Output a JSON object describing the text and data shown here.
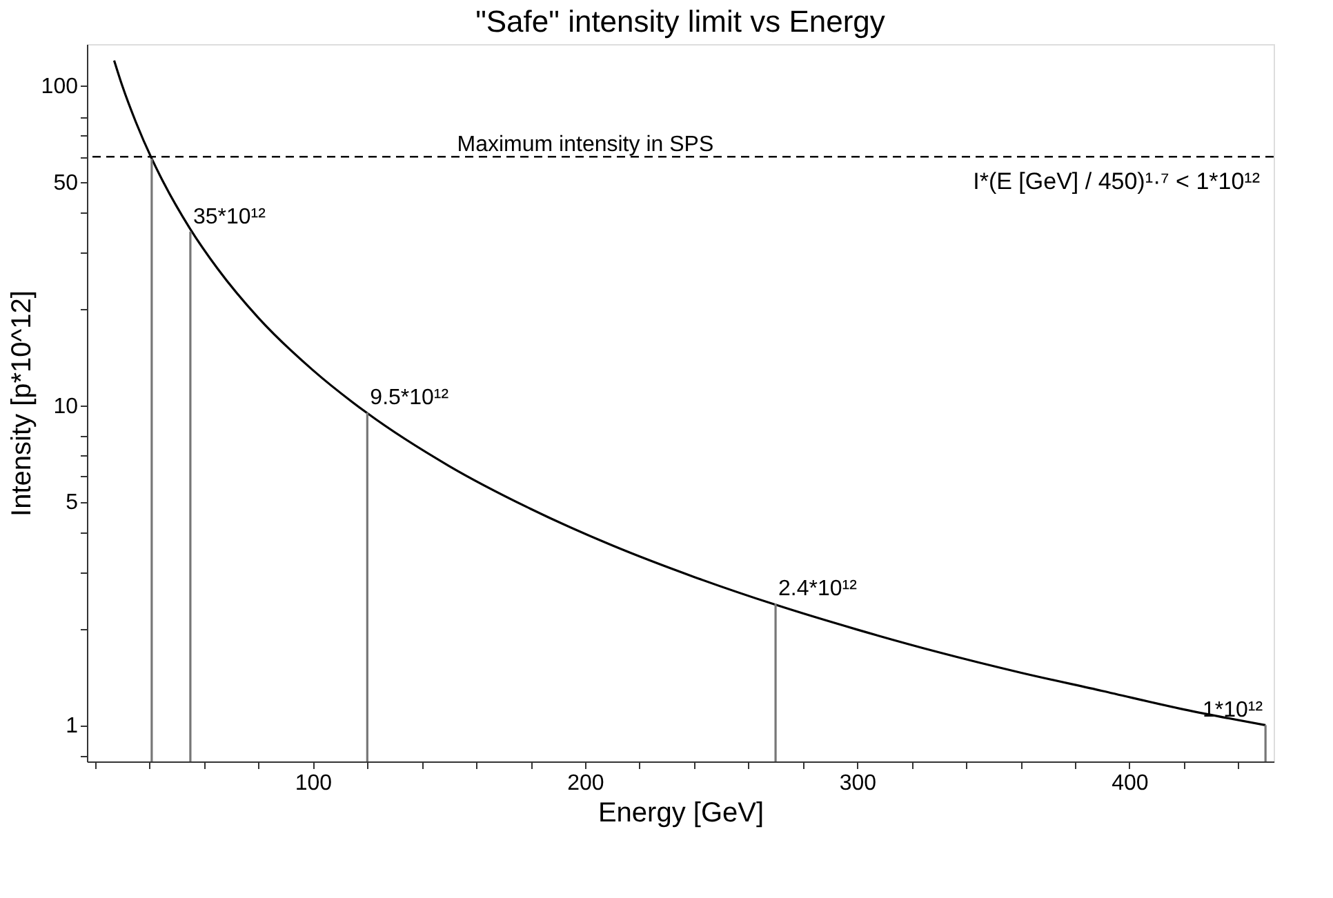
{
  "chart_data": {
    "type": "line",
    "title": "\"Safe\" intensity limit vs Energy",
    "xlabel": "Energy [GeV]",
    "ylabel": "Intensity [p*10^12]",
    "log": "y",
    "xlim": [
      17,
      453
    ],
    "ylim": [
      0.77,
      135
    ],
    "xticks": [
      {
        "value": 20,
        "label": null
      },
      {
        "value": 40,
        "label": null
      },
      {
        "value": 60,
        "label": null
      },
      {
        "value": 80,
        "label": null
      },
      100,
      {
        "value": 120,
        "label": null
      },
      {
        "value": 140,
        "label": null
      },
      {
        "value": 160,
        "label": null
      },
      {
        "value": 180,
        "label": null
      },
      200,
      {
        "value": 220,
        "label": null
      },
      {
        "value": 240,
        "label": null
      },
      {
        "value": 260,
        "label": null
      },
      {
        "value": 280,
        "label": null
      },
      300,
      {
        "value": 320,
        "label": null
      },
      {
        "value": 340,
        "label": null
      },
      {
        "value": 360,
        "label": null
      },
      {
        "value": 380,
        "label": null
      },
      400,
      {
        "value": 420,
        "label": null
      },
      {
        "value": 440,
        "label": null
      }
    ],
    "yticks": [
      {
        "value": 0.8,
        "label": null
      },
      1,
      {
        "value": 2,
        "label": null
      },
      {
        "value": 3,
        "label": null
      },
      {
        "value": 4,
        "label": null
      },
      5,
      {
        "value": 6,
        "label": null
      },
      {
        "value": 7,
        "label": null
      },
      {
        "value": 8,
        "label": null
      },
      10,
      {
        "value": 20,
        "label": null
      },
      {
        "value": 30,
        "label": null
      },
      {
        "value": 40,
        "label": null
      },
      50,
      {
        "value": 60,
        "label": null
      },
      {
        "value": 70,
        "label": null
      },
      {
        "value": 80,
        "label": null
      },
      100
    ],
    "grid": false,
    "series": [
      {
        "color": "#000000",
        "x": [
          27,
          30,
          35,
          40.8,
          45,
          55,
          65,
          80,
          100,
          120,
          150,
          180,
          210,
          240,
          270,
          300,
          330,
          360,
          390,
          420,
          450
        ],
        "values": [
          120,
          99.9,
          76.9,
          59.2,
          50.1,
          35.6,
          26.8,
          18.8,
          12.9,
          9.46,
          6.47,
          4.75,
          3.65,
          2.91,
          2.38,
          1.99,
          1.69,
          1.46,
          1.28,
          1.12,
          1
        ]
      },
      {
        "type": "bar",
        "color": "#777777",
        "x": [
          40.8,
          55,
          120,
          270,
          450
        ],
        "values": [
          59.2,
          35,
          9.5,
          2.4,
          1
        ]
      }
    ],
    "ref_lines": [
      {
        "axis": "y",
        "value": 60,
        "label": "Maximum intensity in SPS",
        "line_style": "dashed",
        "color": "#000000"
      }
    ],
    "annotations": [
      {
        "text": "35*10¹²",
        "x": 55,
        "y": 35
      },
      {
        "text": "9.5*10¹²",
        "x": 120,
        "y": 9.5
      },
      {
        "text": "2.4*10¹²",
        "x": 270,
        "y": 2.4
      },
      {
        "text": "1*10¹²",
        "x": 450,
        "y": 1
      },
      "I*(E [GeV] / 450)¹·⁷ < 1*10¹²"
    ]
  }
}
